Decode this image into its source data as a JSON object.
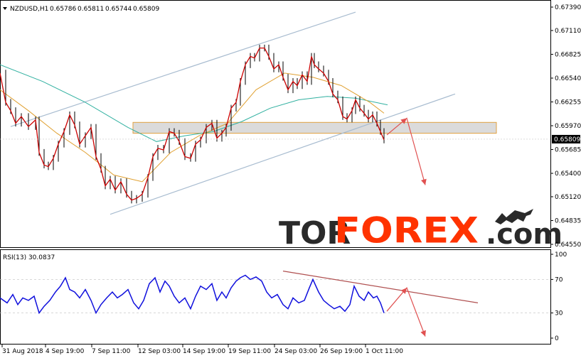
{
  "header": {
    "symbol": "NZDUSD,H1",
    "open": "0.65786",
    "high": "0.65811",
    "low": "0.65744",
    "close": "0.65809"
  },
  "rsi_header": "RSI(13) 30.0837",
  "watermark": {
    "part1": "TOR",
    "part2": "FOREX",
    "part3": ".com"
  },
  "colors": {
    "price_line": "#cc0000",
    "price_bar": "#000000",
    "ma_fast": "#e0a030",
    "ma_slow": "#30b0a0",
    "channel": "#a8bcd0",
    "zone_fill": "#cfcfcf",
    "zone_border": "#e0a040",
    "rsi_line": "#1010dd",
    "rsi_trend": "#b05050",
    "arrow": "#e05050",
    "watermark_dark": "#2a2a2a",
    "watermark_red": "#ff3300",
    "price_label_bg": "#ffffff"
  },
  "chart_data": [
    {
      "type": "line",
      "title": "NZDUSD,H1",
      "current_price": 0.65809,
      "current_price_label": "0.65809",
      "y_axis_labels": [
        "0.67390",
        "0.67110",
        "0.66825",
        "0.66540",
        "0.66255",
        "0.65970",
        "0.65685",
        "0.65400",
        "0.65120",
        "0.64835",
        "0.64550"
      ],
      "ylim": [
        0.6455,
        0.6739
      ],
      "x_tick_labels": [
        "31 Aug 2018",
        "4 Sep 19:00",
        "7 Sep 11:00",
        "12 Sep 03:00",
        "14 Sep 19:00",
        "19 Sep 11:00",
        "24 Sep 03:00",
        "26 Sep 19:00",
        "1 Oct 11:00"
      ],
      "price_series": [
        [
          0,
          0.666
        ],
        [
          8,
          0.6625
        ],
        [
          15,
          0.6615
        ],
        [
          22,
          0.66
        ],
        [
          30,
          0.6608
        ],
        [
          40,
          0.6596
        ],
        [
          50,
          0.6604
        ],
        [
          55,
          0.6565
        ],
        [
          62,
          0.655
        ],
        [
          68,
          0.6548
        ],
        [
          75,
          0.6558
        ],
        [
          82,
          0.6575
        ],
        [
          90,
          0.659
        ],
        [
          98,
          0.661
        ],
        [
          105,
          0.6598
        ],
        [
          112,
          0.6575
        ],
        [
          120,
          0.6585
        ],
        [
          128,
          0.6595
        ],
        [
          135,
          0.656
        ],
        [
          142,
          0.6545
        ],
        [
          148,
          0.6525
        ],
        [
          155,
          0.6533
        ],
        [
          162,
          0.652
        ],
        [
          170,
          0.653
        ],
        [
          178,
          0.6515
        ],
        [
          185,
          0.6508
        ],
        [
          192,
          0.651
        ],
        [
          200,
          0.6515
        ],
        [
          208,
          0.6535
        ],
        [
          215,
          0.656
        ],
        [
          222,
          0.657
        ],
        [
          230,
          0.6568
        ],
        [
          238,
          0.659
        ],
        [
          245,
          0.6588
        ],
        [
          252,
          0.6578
        ],
        [
          260,
          0.656
        ],
        [
          268,
          0.6558
        ],
        [
          275,
          0.6575
        ],
        [
          282,
          0.658
        ],
        [
          290,
          0.6595
        ],
        [
          298,
          0.66
        ],
        [
          305,
          0.6582
        ],
        [
          312,
          0.6588
        ],
        [
          318,
          0.6595
        ],
        [
          325,
          0.6618
        ],
        [
          332,
          0.6625
        ],
        [
          338,
          0.665
        ],
        [
          345,
          0.667
        ],
        [
          352,
          0.668
        ],
        [
          358,
          0.6678
        ],
        [
          365,
          0.669
        ],
        [
          372,
          0.669
        ],
        [
          378,
          0.668
        ],
        [
          385,
          0.6665
        ],
        [
          392,
          0.667
        ],
        [
          398,
          0.6655
        ],
        [
          405,
          0.664
        ],
        [
          412,
          0.665
        ],
        [
          418,
          0.6645
        ],
        [
          425,
          0.6658
        ],
        [
          432,
          0.665
        ],
        [
          438,
          0.668
        ],
        [
          442,
          0.667
        ],
        [
          448,
          0.6665
        ],
        [
          455,
          0.666
        ],
        [
          462,
          0.665
        ],
        [
          468,
          0.6635
        ],
        [
          475,
          0.6628
        ],
        [
          482,
          0.6608
        ],
        [
          488,
          0.6605
        ],
        [
          495,
          0.6615
        ],
        [
          500,
          0.6628
        ],
        [
          506,
          0.6618
        ],
        [
          512,
          0.6612
        ],
        [
          518,
          0.6605
        ],
        [
          524,
          0.661
        ],
        [
          530,
          0.66
        ],
        [
          535,
          0.659
        ],
        [
          540,
          0.658
        ]
      ],
      "ma_fast_series": [
        [
          0,
          0.664
        ],
        [
          40,
          0.6615
        ],
        [
          80,
          0.6588
        ],
        [
          120,
          0.6565
        ],
        [
          160,
          0.6538
        ],
        [
          200,
          0.653
        ],
        [
          240,
          0.6565
        ],
        [
          280,
          0.6585
        ],
        [
          320,
          0.66
        ],
        [
          360,
          0.664
        ],
        [
          400,
          0.666
        ],
        [
          440,
          0.6655
        ],
        [
          480,
          0.6645
        ],
        [
          520,
          0.6625
        ],
        [
          540,
          0.6612
        ]
      ],
      "ma_slow_series": [
        [
          0,
          0.667
        ],
        [
          60,
          0.665
        ],
        [
          120,
          0.6625
        ],
        [
          180,
          0.6595
        ],
        [
          220,
          0.6578
        ],
        [
          260,
          0.6585
        ],
        [
          300,
          0.659
        ],
        [
          340,
          0.6602
        ],
        [
          380,
          0.6618
        ],
        [
          420,
          0.6628
        ],
        [
          460,
          0.6632
        ],
        [
          500,
          0.663
        ],
        [
          545,
          0.6622
        ]
      ],
      "channel_upper": [
        [
          15,
          0.6596
        ],
        [
          500,
          0.6733
        ]
      ],
      "channel_lower": [
        [
          155,
          0.6491
        ],
        [
          640,
          0.6635
        ]
      ],
      "support_zone": {
        "x_range": [
          187,
          698
        ],
        "y_range": [
          0.6588,
          0.6601
        ]
      },
      "forecast_path": [
        [
          544,
          0.6586
        ],
        [
          572,
          0.6606
        ],
        [
          598,
          0.6526
        ]
      ]
    },
    {
      "type": "line",
      "title": "RSI(13) 30.0837",
      "current_value": 30.0837,
      "y_axis_labels": [
        "100",
        "70",
        "30",
        "0"
      ],
      "ylim": [
        0,
        100
      ],
      "rsi_series": [
        [
          0,
          48
        ],
        [
          10,
          42
        ],
        [
          18,
          52
        ],
        [
          25,
          40
        ],
        [
          32,
          48
        ],
        [
          40,
          45
        ],
        [
          48,
          50
        ],
        [
          55,
          30
        ],
        [
          62,
          38
        ],
        [
          70,
          45
        ],
        [
          78,
          55
        ],
        [
          85,
          62
        ],
        [
          92,
          72
        ],
        [
          98,
          58
        ],
        [
          105,
          55
        ],
        [
          112,
          48
        ],
        [
          120,
          58
        ],
        [
          128,
          45
        ],
        [
          135,
          30
        ],
        [
          142,
          40
        ],
        [
          150,
          48
        ],
        [
          158,
          55
        ],
        [
          165,
          48
        ],
        [
          172,
          52
        ],
        [
          180,
          58
        ],
        [
          188,
          42
        ],
        [
          195,
          35
        ],
        [
          202,
          45
        ],
        [
          210,
          65
        ],
        [
          218,
          72
        ],
        [
          225,
          55
        ],
        [
          232,
          68
        ],
        [
          238,
          62
        ],
        [
          245,
          50
        ],
        [
          252,
          42
        ],
        [
          260,
          48
        ],
        [
          268,
          35
        ],
        [
          275,
          50
        ],
        [
          282,
          62
        ],
        [
          290,
          58
        ],
        [
          298,
          65
        ],
        [
          305,
          45
        ],
        [
          312,
          55
        ],
        [
          318,
          48
        ],
        [
          325,
          60
        ],
        [
          332,
          68
        ],
        [
          338,
          72
        ],
        [
          345,
          75
        ],
        [
          352,
          70
        ],
        [
          360,
          73
        ],
        [
          368,
          68
        ],
        [
          375,
          55
        ],
        [
          382,
          48
        ],
        [
          390,
          52
        ],
        [
          398,
          40
        ],
        [
          405,
          35
        ],
        [
          412,
          48
        ],
        [
          420,
          42
        ],
        [
          428,
          45
        ],
        [
          435,
          60
        ],
        [
          440,
          70
        ],
        [
          448,
          55
        ],
        [
          455,
          45
        ],
        [
          462,
          40
        ],
        [
          470,
          35
        ],
        [
          478,
          38
        ],
        [
          485,
          32
        ],
        [
          492,
          40
        ],
        [
          498,
          62
        ],
        [
          505,
          50
        ],
        [
          512,
          45
        ],
        [
          518,
          55
        ],
        [
          525,
          48
        ],
        [
          530,
          50
        ],
        [
          535,
          42
        ],
        [
          540,
          30
        ]
      ],
      "rsi_trendline": [
        [
          398,
          80
        ],
        [
          672,
          42
        ]
      ],
      "forecast_path": [
        [
          544,
          32
        ],
        [
          572,
          60
        ],
        [
          598,
          2
        ]
      ]
    }
  ]
}
